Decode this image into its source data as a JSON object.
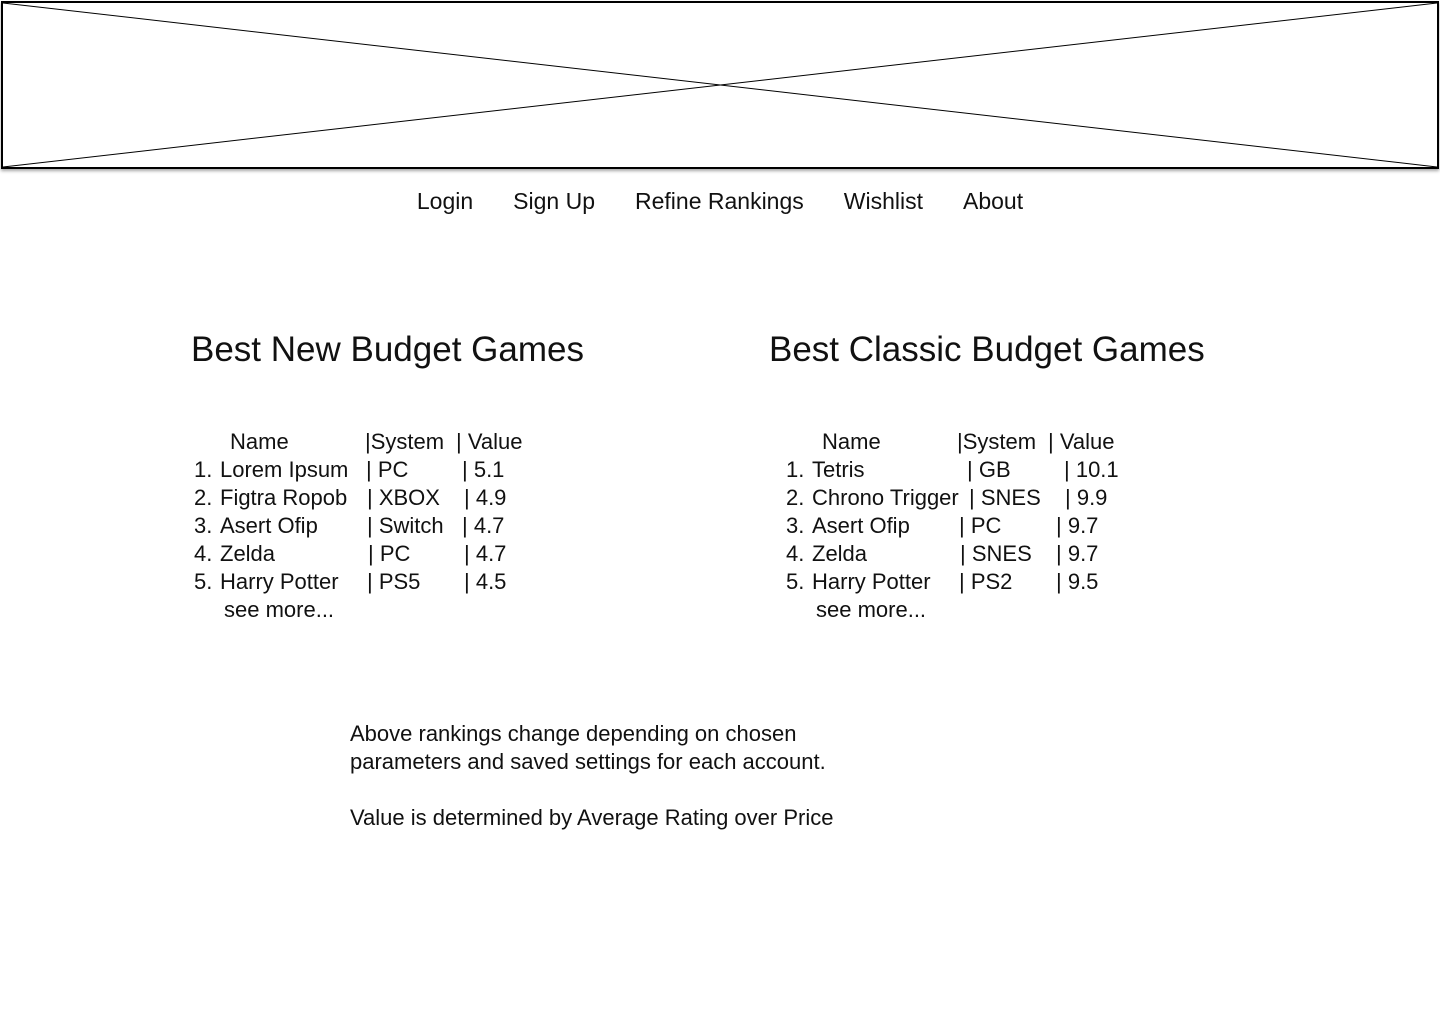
{
  "nav": {
    "items": [
      "Login",
      "Sign Up",
      "Refine Rankings",
      "Wishlist",
      "About"
    ]
  },
  "new_games": {
    "title": "Best New Budget Games",
    "header": {
      "name": "Name",
      "system": "|System",
      "value": "| Value"
    },
    "rows": [
      {
        "rank": "1.",
        "name": "Lorem Ipsum",
        "system": "| PC",
        "value": "|  5.1"
      },
      {
        "rank": "2.",
        "name": "Figtra Ropob",
        "system": "| XBOX",
        "value": "|  4.9"
      },
      {
        "rank": "3.",
        "name": "Asert Ofip",
        "system": "| Switch",
        "value": "|   4.7"
      },
      {
        "rank": "4.",
        "name": "Zelda",
        "system": "| PC",
        "value": "|   4.7"
      },
      {
        "rank": "5.",
        "name": "Harry Potter",
        "system": "| PS5",
        "value": "|   4.5"
      }
    ],
    "see_more": "see more..."
  },
  "classic_games": {
    "title": "Best Classic Budget Games",
    "header": {
      "name": "Name",
      "system": "|System",
      "value": "| Value"
    },
    "rows": [
      {
        "rank": "1.",
        "name": "Tetris",
        "system": "| GB",
        "value": "|  10.1"
      },
      {
        "rank": "2.",
        "name": "Chrono Trigger",
        "system": "| SNES",
        "value": "|  9.9"
      },
      {
        "rank": "3.",
        "name": "Asert Ofip",
        "system": "| PC",
        "value": "|   9.7"
      },
      {
        "rank": "4.",
        "name": "Zelda",
        "system": "| SNES",
        "value": "|   9.7"
      },
      {
        "rank": "5.",
        "name": "Harry Potter",
        "system": "| PS2",
        "value": "|   9.5"
      }
    ],
    "see_more": "see more..."
  },
  "notes": {
    "line1": "Above rankings change depending on chosen",
    "line2": "parameters and saved settings for each account.",
    "line3": "Value is determined by Average Rating over Price"
  }
}
